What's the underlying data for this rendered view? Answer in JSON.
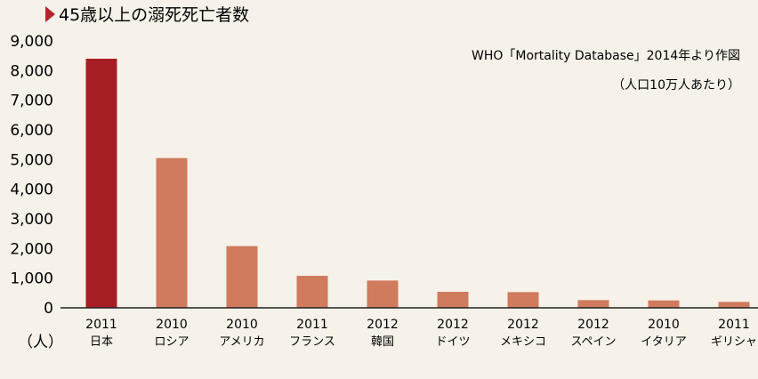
{
  "chart_data": {
    "type": "bar",
    "title": "45歳以上の溺死死亡者数",
    "source": "WHO「Mortality Database」2014年より作図",
    "unit_note": "（人口10万人あたり）",
    "ylabel": "（人）",
    "ylim": [
      0,
      9000
    ],
    "yticks": [
      "9,000",
      "8,000",
      "7,000",
      "6,000",
      "5,000",
      "4,000",
      "3,000",
      "2,000",
      "1,000",
      "0"
    ],
    "ytick_values": [
      9000,
      8000,
      7000,
      6000,
      5000,
      4000,
      3000,
      2000,
      1000,
      0
    ],
    "grid": false,
    "categories": [
      {
        "year": "2011",
        "country": "日本"
      },
      {
        "year": "2010",
        "country": "ロシア"
      },
      {
        "year": "2010",
        "country": "アメリカ"
      },
      {
        "year": "2011",
        "country": "フランス"
      },
      {
        "year": "2012",
        "country": "韓国"
      },
      {
        "year": "2012",
        "country": "ドイツ"
      },
      {
        "year": "2012",
        "country": "メキシコ"
      },
      {
        "year": "2012",
        "country": "スペイン"
      },
      {
        "year": "2010",
        "country": "イタリア"
      },
      {
        "year": "2011",
        "country": "ギリシャ"
      }
    ],
    "values": [
      8400,
      5050,
      2080,
      1080,
      920,
      540,
      530,
      260,
      250,
      200
    ],
    "colors": {
      "highlight": "#a61d24",
      "bar": "#d07a5e",
      "title_marker": "#b0262c",
      "axis": "#231f1c"
    }
  }
}
